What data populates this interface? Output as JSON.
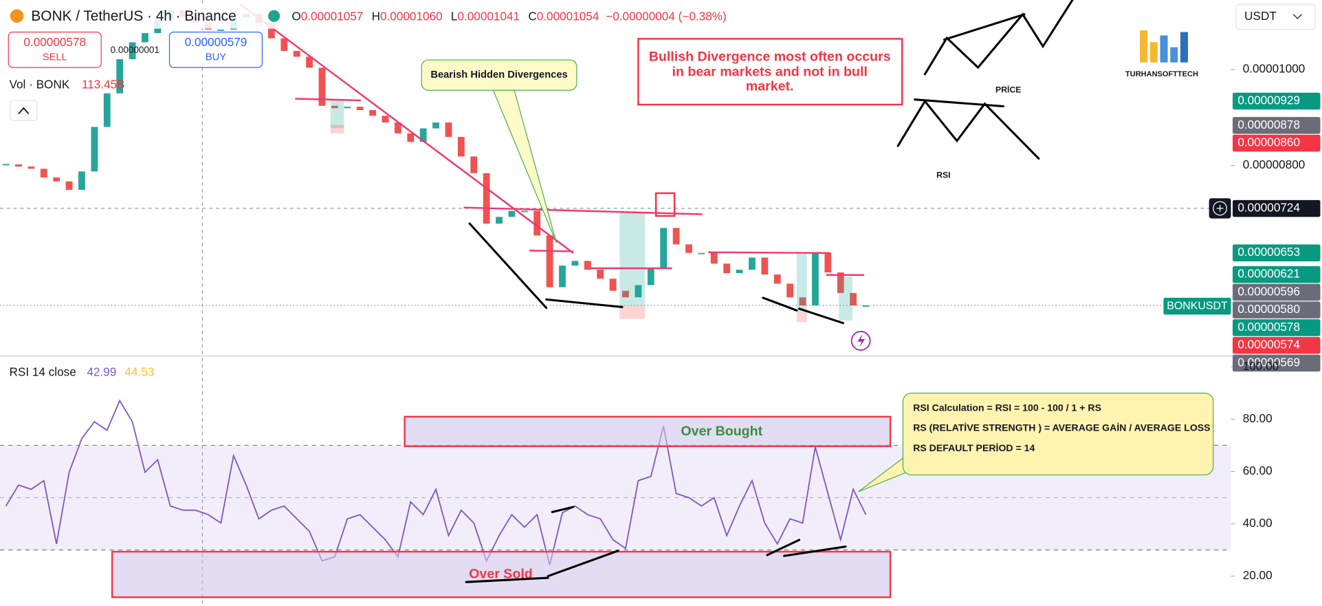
{
  "header": {
    "symbol": "BONK / TetherUS · 4h · Binance",
    "ohlc": [
      {
        "key": "O",
        "value": "0.00001057"
      },
      {
        "key": "H",
        "value": "0.00001060"
      },
      {
        "key": "L",
        "value": "0.00001041"
      },
      {
        "key": "C",
        "value": "0.00001054"
      }
    ],
    "change": "−0.00000004 (−0.38%)"
  },
  "trade": {
    "sell_price": "0.00000578",
    "sell": "SELL",
    "spread": "0.00000001",
    "buy_price": "0.00000579",
    "buy": "BUY"
  },
  "volume_legend": {
    "label": "Vol · BONK",
    "value": "113.45B"
  },
  "currency": "USDT",
  "price_chart": {
    "type": "candlestick",
    "scale": "log",
    "ylim": [
      5.16e-06,
      1.175e-05
    ],
    "yticks": [
      {
        "value": 1e-05,
        "label": "0.00001000"
      },
      {
        "value": 8e-06,
        "label": "0.00000800"
      }
    ],
    "up_color": "#26a69a",
    "down_color": "#ef5350",
    "closes": [
      8.02e-06,
      7.98e-06,
      7.94e-06,
      7.78e-06,
      7.71e-06,
      7.56e-06,
      7.89e-06,
      8.75e-06,
      9.46e-06,
      1.024e-05,
      1.065e-05,
      1.088e-05,
      1.125e-05,
      1.147e-05,
      1.129e-05,
      1.114e-05,
      1.097e-05,
      1.097e-05,
      1.129e-05,
      1.138e-05,
      1.114e-05,
      1.075e-05,
      1.044e-05,
      1.03e-05,
      1.004e-05,
      9.19e-06,
      9.14e-06,
      9.17e-06,
      9.1e-06,
      8.98e-06,
      8.84e-06,
      8.62e-06,
      8.45e-06,
      8.72e-06,
      8.84e-06,
      8.55e-06,
      8.17e-06,
      7.86e-06,
      6.99e-06,
      7.1e-06,
      7.2e-06,
      7.2e-06,
      6.8e-06,
      6.03e-06,
      6.34e-06,
      6.41e-06,
      6.28e-06,
      6.15e-06,
      5.98e-06,
      5.89e-06,
      6.06e-06,
      6.3e-06,
      6.92e-06,
      6.66e-06,
      6.53e-06,
      6.53e-06,
      6.37e-06,
      6.23e-06,
      6.28e-06,
      6.46e-06,
      6.21e-06,
      6.08e-06,
      5.89e-06,
      5.78e-06,
      6.53e-06,
      6.24e-06,
      5.95e-06,
      5.78e-06,
      5.78e-06
    ],
    "price_badges": [
      {
        "value": 9.29e-06,
        "label": "0.00000929",
        "color": "#089981"
      },
      {
        "value": 8.78e-06,
        "label": "0.00000878",
        "color": "#6a6d78"
      },
      {
        "value": 8.6e-06,
        "label": "0.00000860",
        "color": "#f23645"
      },
      {
        "value": 7.24e-06,
        "label": "0.00000724",
        "color": "#131722"
      },
      {
        "value": 6.53e-06,
        "label": "0.00000653",
        "color": "#089981"
      },
      {
        "value": 6.21e-06,
        "label": "0.00000621",
        "color": "#089981"
      },
      {
        "value": 5.96e-06,
        "label": "0.00000596",
        "color": "#6a6d78"
      },
      {
        "value": 5.8e-06,
        "label": "0.00000580",
        "color": "#6a6d78"
      },
      {
        "value": 5.78e-06,
        "label": "0.00000578",
        "color": "#089981"
      },
      {
        "value": 5.74e-06,
        "label": "0.00000574",
        "color": "#f23645"
      },
      {
        "value": 5.69e-06,
        "label": "0.00000569",
        "color": "#6a6d78"
      }
    ],
    "symbol_badge": "BONKUSDT"
  },
  "rsi_chart": {
    "type": "line",
    "title": "RSI 14 close",
    "value_label": "42.99",
    "ma_label": "44.53",
    "color": "#7e57c2",
    "ylim": [
      8.7,
      103.2
    ],
    "yticks": [
      {
        "value": 100,
        "label": "100.00"
      },
      {
        "value": 80,
        "label": "80.00"
      },
      {
        "value": 60,
        "label": "60.00"
      },
      {
        "value": 40,
        "label": "40.00"
      },
      {
        "value": 20,
        "label": "20.00"
      }
    ],
    "band": [
      30,
      70
    ],
    "midline": 50,
    "values": [
      46.8,
      54.8,
      53.2,
      56.5,
      32.3,
      59.7,
      72.6,
      79.0,
      75.8,
      87.1,
      79.0,
      59.7,
      64.5,
      46.8,
      45.2,
      45.2,
      43.5,
      40.3,
      66.1,
      54.8,
      41.9,
      45.2,
      46.8,
      41.9,
      37.1,
      25.8,
      27.4,
      41.9,
      43.5,
      38.7,
      33.9,
      27.4,
      48.4,
      43.5,
      53.2,
      35.5,
      45.2,
      40.3,
      25.8,
      35.5,
      43.5,
      38.7,
      43.5,
      24.2,
      44.2,
      46.8,
      43.5,
      41.9,
      33.9,
      30.6,
      56.5,
      58.1,
      77.4,
      51.6,
      50.0,
      46.8,
      50.0,
      35.5,
      46.8,
      56.5,
      40.3,
      32.3,
      41.9,
      40.3,
      69.4,
      51.6,
      33.9,
      53.2,
      43.5
    ]
  },
  "annotations": {
    "bearish_callout": "Bearish Hidden Divergences",
    "bullish_note": [
      "Bullish Divergence most often occurs",
      "in bear markets and not in bull",
      "market."
    ],
    "price_sketch_label": "PRİCE",
    "rsi_sketch_label": "RSI",
    "logo": "TURHANSOFTTECH",
    "over_bought": "Over Bought",
    "over_sold": "Over Sold",
    "rsi_formula": [
      "RSI Calculation = RSI  = 100 - 100 /  1 + RS",
      "RS (RELATİVE STRENGTH ) = AVERAGE GAİN / AVERAGE LOSS",
      "RS DEFAULT PERİOD = 14"
    ]
  }
}
